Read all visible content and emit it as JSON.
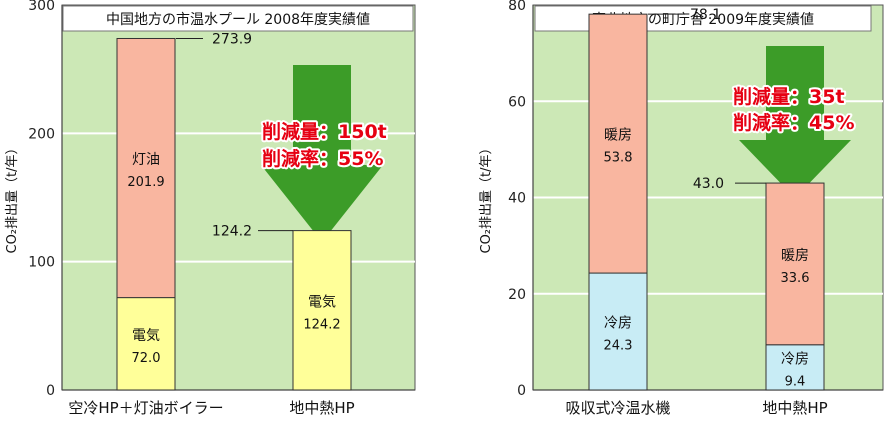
{
  "chart_data": [
    {
      "type": "bar",
      "stacked": true,
      "title": "中国地方の市温水プール 2008年度実績値",
      "ylabel": "CO₂排出量（t/年）",
      "ylim": [
        0,
        300
      ],
      "yticks": [
        0,
        100,
        200,
        300
      ],
      "grid": true,
      "categories": [
        "空冷HP＋灯油ボイラー",
        "地中熱HP"
      ],
      "series": [
        {
          "name": "電気",
          "values": [
            72.0,
            124.2
          ],
          "labels": [
            "72.0",
            "124.2"
          ],
          "color": "#ffff99"
        },
        {
          "name": "灯油",
          "values": [
            201.9,
            0
          ],
          "labels": [
            "201.9",
            ""
          ],
          "color": "#f9b6a0"
        }
      ],
      "totals": [
        "273.9",
        "124.2"
      ],
      "reduction": {
        "amount": "削減量：150t",
        "rate": "削減率：55%"
      },
      "colors": {
        "background": "#cce8b6",
        "arrow": "#3c9c28",
        "reduction_text": "#e60012"
      }
    },
    {
      "type": "bar",
      "stacked": true,
      "title": "東北地方の町庁舎 2009年度実績値",
      "ylabel": "CO₂排出量（t/年）",
      "ylim": [
        0,
        80
      ],
      "yticks": [
        0,
        20,
        40,
        60,
        80
      ],
      "grid": true,
      "categories": [
        "吸収式冷温水機",
        "地中熱HP"
      ],
      "series": [
        {
          "name": "冷房",
          "values": [
            24.3,
            9.4
          ],
          "labels": [
            "24.3",
            "9.4"
          ],
          "color": "#c8ecf5"
        },
        {
          "name": "暖房",
          "values": [
            53.8,
            33.6
          ],
          "labels": [
            "53.8",
            "33.6"
          ],
          "color": "#f9b6a0"
        }
      ],
      "totals": [
        "78.1",
        "43.0"
      ],
      "reduction": {
        "amount": "削減量：35t",
        "rate": "削減率：45%"
      },
      "colors": {
        "background": "#cce8b6",
        "arrow": "#3c9c28",
        "reduction_text": "#e60012"
      }
    }
  ]
}
